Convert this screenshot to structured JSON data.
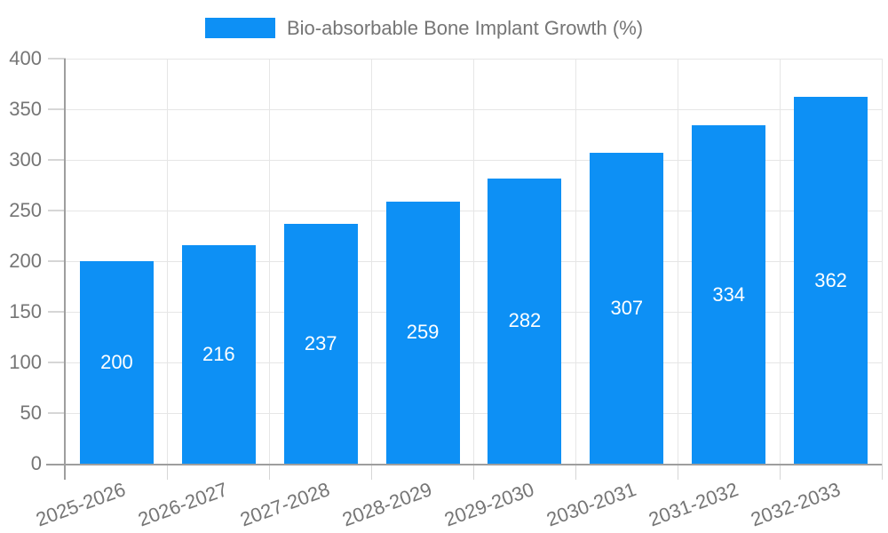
{
  "chart_data": {
    "type": "bar",
    "title": "Bio-absorbable Bone Implant Growth (%)",
    "legend": {
      "label": "Bio-absorbable Bone Implant Growth (%)",
      "position": "top-center",
      "swatch_color": "#0d90f5"
    },
    "categories": [
      "2025-2026",
      "2026-2027",
      "2027-2028",
      "2028-2029",
      "2029-2030",
      "2030-2031",
      "2031-2032",
      "2032-2033"
    ],
    "values": [
      200,
      216,
      237,
      259,
      282,
      307,
      334,
      362
    ],
    "xlabel": "",
    "ylabel": "",
    "ylim": [
      0,
      400
    ],
    "yticks": [
      0,
      50,
      100,
      150,
      200,
      250,
      300,
      350,
      400
    ],
    "grid": true,
    "x_label_rotation_deg": -20,
    "colors": {
      "bar": "#0d90f5",
      "gridline": "#e6e6e6",
      "tickmark": "#d6d6d6",
      "axis_line": "#9e9e9e",
      "axis_text": "#757575",
      "bar_label_text": "#ffffff",
      "background": "#ffffff"
    }
  }
}
